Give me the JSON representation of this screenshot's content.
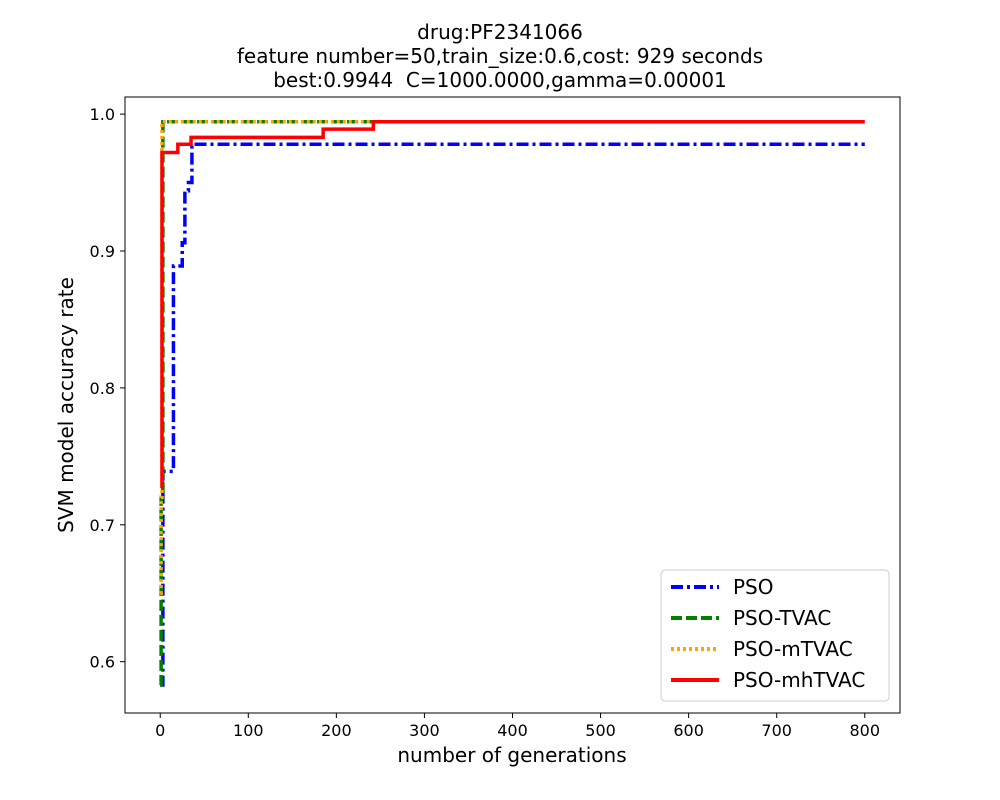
{
  "chart_data": {
    "type": "line",
    "title_lines": [
      "drug:PF2341066",
      "feature number=50,train_size:0.6,cost: 929 seconds",
      "best:0.9944  C=1000.0000,gamma=0.00001"
    ],
    "xlabel": "number of generations",
    "ylabel": "SVM model accuracy rate",
    "xlim": [
      -40,
      840
    ],
    "ylim": [
      0.5625,
      1.0125
    ],
    "xticks": [
      0,
      100,
      200,
      300,
      400,
      500,
      600,
      700,
      800
    ],
    "yticks": [
      0.6,
      0.7,
      0.8,
      0.9,
      1.0
    ],
    "ytick_labels": [
      "0.6",
      "0.7",
      "0.8",
      "0.9",
      "1.0"
    ],
    "grid": false,
    "legend_position": "lower-right",
    "series": [
      {
        "name": "PSO",
        "color": "#0000ff",
        "style": "dashdot",
        "x": [
          0,
          3,
          3,
          15,
          15,
          25,
          25,
          28,
          28,
          32,
          32,
          36,
          36,
          800
        ],
        "y": [
          0.583,
          0.583,
          0.739,
          0.739,
          0.889,
          0.889,
          0.906,
          0.906,
          0.944,
          0.944,
          0.95,
          0.95,
          0.978,
          0.978
        ]
      },
      {
        "name": "PSO-TVAC",
        "color": "#008000",
        "style": "dashed",
        "x": [
          0,
          1,
          1,
          3,
          3,
          240
        ],
        "y": [
          0.583,
          0.583,
          0.72,
          0.72,
          0.9944,
          0.9944
        ]
      },
      {
        "name": "PSO-mTVAC",
        "color": "#ffa500",
        "style": "dotted",
        "x": [
          0,
          1,
          1,
          2,
          2,
          240
        ],
        "y": [
          0.65,
          0.65,
          0.72,
          0.72,
          0.9944,
          0.9944
        ]
      },
      {
        "name": "PSO-mhTVAC",
        "color": "#ff0000",
        "style": "solid",
        "x": [
          0,
          2,
          2,
          20,
          20,
          35,
          35,
          185,
          185,
          242,
          242,
          800
        ],
        "y": [
          0.728,
          0.728,
          0.972,
          0.972,
          0.978,
          0.978,
          0.983,
          0.983,
          0.989,
          0.989,
          0.9944,
          0.9944
        ]
      }
    ]
  }
}
